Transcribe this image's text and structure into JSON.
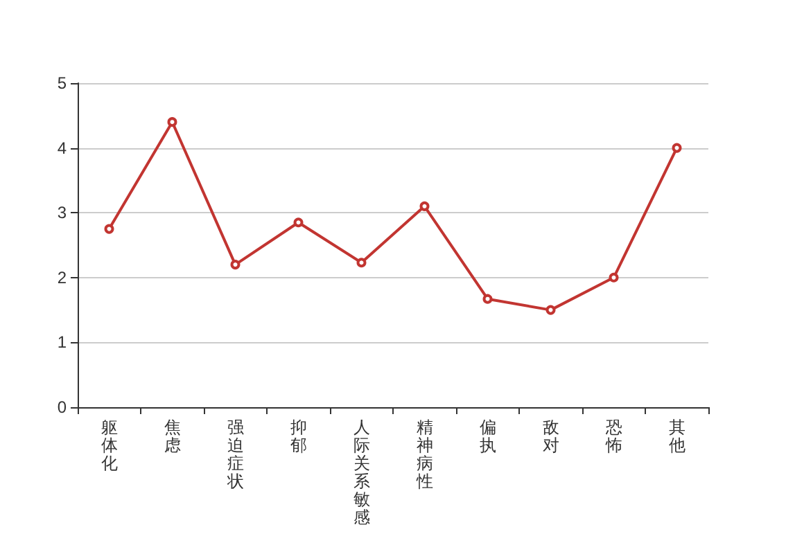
{
  "chart_data": {
    "type": "line",
    "categories": [
      "躯体化",
      "焦虑",
      "强迫症状",
      "抑郁",
      "人际关系敏感",
      "精神病性",
      "偏执",
      "敌对",
      "恐怖",
      "其他"
    ],
    "series": [
      {
        "color": "#c23531",
        "values": [
          2.75,
          4.4,
          2.2,
          2.85,
          2.23,
          3.1,
          1.67,
          1.5,
          2.0,
          4.0
        ]
      }
    ],
    "ylim": [
      0,
      5
    ],
    "yticks": [
      0,
      1,
      2,
      3,
      4,
      5
    ],
    "grid": "y",
    "marker": "circle",
    "line_style": "solid"
  }
}
